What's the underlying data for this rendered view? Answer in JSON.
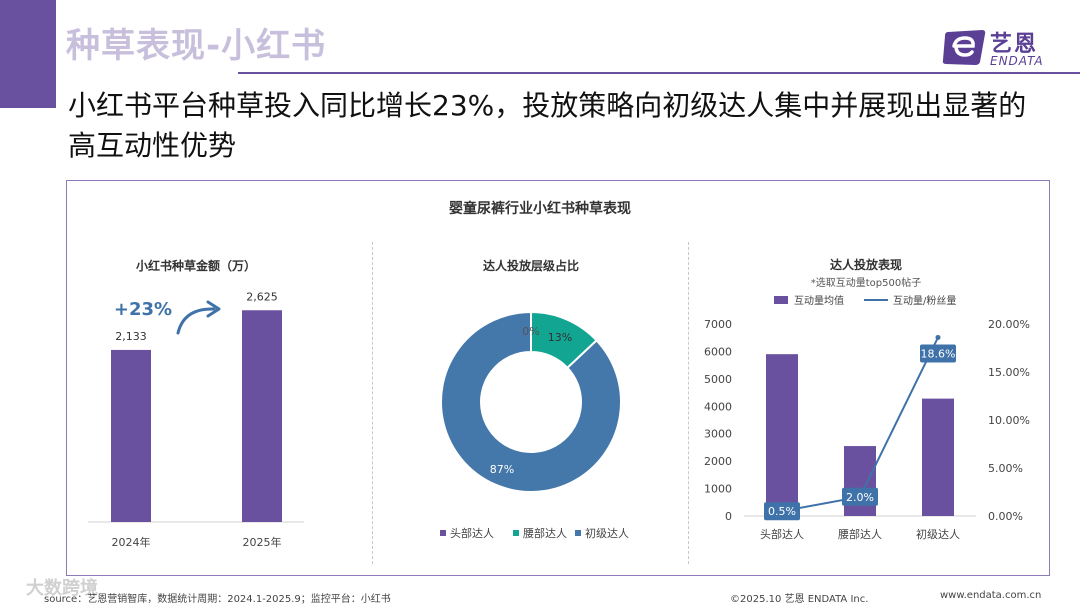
{
  "page": {
    "title": "种草表现-小红书",
    "headline": "小红书平台种草投入同比增长23%，投放策略向初级达人集中并展现出显著的高互动性优势",
    "panel_title": "婴童尿裤行业小红书种草表现",
    "source": "source：艺恩营销智库，数据统计周期：2024.1-2025.9；监控平台：小红书",
    "copyright": "©2025.10  艺恩 ENDATA Inc.",
    "url": "www.endata.com.cn",
    "watermark": "大数跨境"
  },
  "logo": {
    "cn": "艺恩",
    "en": "ENDATA"
  },
  "colors": {
    "purple": "#6a51a0",
    "teal": "#12a592",
    "blue": "#4477aa",
    "line": "#3f72a8"
  },
  "chart_data": [
    {
      "type": "bar",
      "title": "小红书种草金额（万）",
      "categories": [
        "2024年",
        "2025年"
      ],
      "values": [
        2133,
        2625
      ],
      "value_labels": [
        "2,133",
        "2,625"
      ],
      "annotation": "+23%",
      "ylim": [
        0,
        3000
      ]
    },
    {
      "type": "pie",
      "subtype": "donut",
      "title": "达人投放层级占比",
      "categories": [
        "头部达人",
        "腰部达人",
        "初级达人"
      ],
      "values": [
        0,
        13,
        87
      ],
      "value_labels": [
        "0%",
        "13%",
        "87%"
      ]
    },
    {
      "type": "bar",
      "subtype": "bar+line dual-axis",
      "title": "达人投放表现",
      "subtitle": "*选取互动量top500帖子",
      "categories": [
        "头部达人",
        "腰部达人",
        "初级达人"
      ],
      "series": [
        {
          "name": "互动量均值",
          "type": "bar",
          "axis": "left",
          "values": [
            5900,
            2550,
            4280
          ]
        },
        {
          "name": "互动量/粉丝量",
          "type": "line",
          "axis": "right",
          "values": [
            0.005,
            0.02,
            0.186
          ],
          "labels": [
            "0.5%",
            "2.0%",
            "18.6%"
          ]
        }
      ],
      "y_left": {
        "ylim": [
          0,
          7000
        ],
        "ticks": [
          "0",
          "1000",
          "2000",
          "3000",
          "4000",
          "5000",
          "6000",
          "7000"
        ]
      },
      "y_right": {
        "ylim": [
          0,
          0.2
        ],
        "ticks": [
          "0.00%",
          "5.00%",
          "10.00%",
          "15.00%",
          "20.00%"
        ]
      }
    }
  ]
}
